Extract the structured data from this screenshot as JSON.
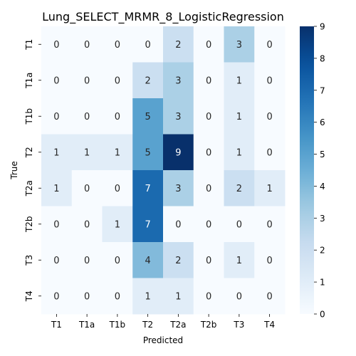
{
  "chart_data": {
    "type": "heatmap",
    "title": "Lung_SELECT_MRMR_8_LogisticRegression",
    "xlabel": "Predicted",
    "ylabel": "True",
    "x_categories": [
      "T1",
      "T1a",
      "T1b",
      "T2",
      "T2a",
      "T2b",
      "T3",
      "T4"
    ],
    "y_categories": [
      "T1",
      "T1a",
      "T1b",
      "T2",
      "T2a",
      "T2b",
      "T3",
      "T4"
    ],
    "values": [
      [
        0,
        0,
        0,
        0,
        2,
        0,
        3,
        0
      ],
      [
        0,
        0,
        0,
        2,
        3,
        0,
        1,
        0
      ],
      [
        0,
        0,
        0,
        5,
        3,
        0,
        1,
        0
      ],
      [
        1,
        1,
        1,
        5,
        9,
        0,
        1,
        0
      ],
      [
        1,
        0,
        0,
        7,
        3,
        0,
        2,
        1
      ],
      [
        0,
        0,
        1,
        7,
        0,
        0,
        0,
        0
      ],
      [
        0,
        0,
        0,
        4,
        2,
        0,
        1,
        0
      ],
      [
        0,
        0,
        0,
        1,
        1,
        0,
        0,
        0
      ]
    ],
    "colorbar": {
      "min": 0,
      "max": 9,
      "ticks": [
        0,
        1,
        2,
        3,
        4,
        5,
        6,
        7,
        8,
        9
      ],
      "colormap": "Blues"
    }
  }
}
